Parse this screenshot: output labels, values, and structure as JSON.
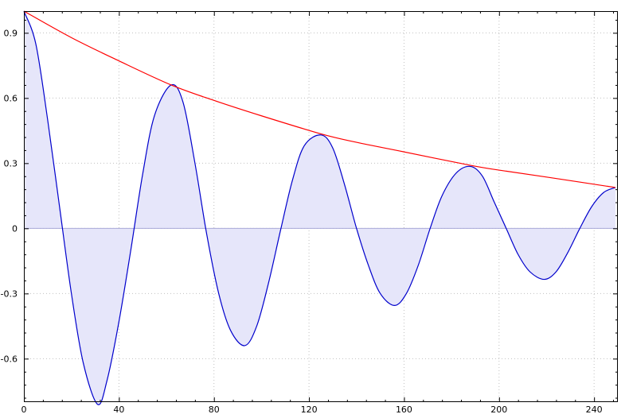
{
  "chart_data": {
    "type": "line",
    "title": "",
    "xlabel": "",
    "ylabel": "",
    "xlim": [
      0,
      250
    ],
    "ylim": [
      -0.8,
      1.0
    ],
    "grid": true,
    "x_ticks": [
      0,
      40,
      80,
      120,
      160,
      200,
      240
    ],
    "x_tick_labels": [
      "0",
      "40",
      "80",
      "120",
      "160",
      "200",
      "240"
    ],
    "y_ticks": [
      0.9,
      0.6,
      0.3,
      0,
      -0.3,
      -0.6
    ],
    "y_tick_labels": [
      "0.9",
      "0.6",
      "0.3",
      "0",
      "-0.3",
      "-0.6"
    ],
    "series": [
      {
        "kind": "filled-line",
        "color": "#0000cc",
        "fill_color": "#e6e6fa",
        "points": [
          [
            0,
            1.0
          ],
          [
            5,
            0.85
          ],
          [
            10,
            0.5
          ],
          [
            15,
            0.1
          ],
          [
            20,
            -0.3
          ],
          [
            25,
            -0.62
          ],
          [
            31,
            -0.81
          ],
          [
            35,
            -0.7
          ],
          [
            40,
            -0.43
          ],
          [
            45,
            -0.1
          ],
          [
            50,
            0.25
          ],
          [
            55,
            0.52
          ],
          [
            62,
            0.66
          ],
          [
            67,
            0.58
          ],
          [
            72,
            0.3
          ],
          [
            77,
            -0.03
          ],
          [
            82,
            -0.3
          ],
          [
            87,
            -0.47
          ],
          [
            93,
            -0.54
          ],
          [
            98,
            -0.45
          ],
          [
            103,
            -0.25
          ],
          [
            108,
            -0.01
          ],
          [
            113,
            0.22
          ],
          [
            118,
            0.38
          ],
          [
            125,
            0.43
          ],
          [
            130,
            0.37
          ],
          [
            135,
            0.2
          ],
          [
            140,
            0.0
          ],
          [
            145,
            -0.17
          ],
          [
            150,
            -0.3
          ],
          [
            156,
            -0.355
          ],
          [
            161,
            -0.3
          ],
          [
            166,
            -0.17
          ],
          [
            171,
            0.0
          ],
          [
            176,
            0.15
          ],
          [
            182,
            0.255
          ],
          [
            188,
            0.285
          ],
          [
            193,
            0.24
          ],
          [
            198,
            0.12
          ],
          [
            203,
            0.0
          ],
          [
            208,
            -0.12
          ],
          [
            213,
            -0.2
          ],
          [
            219,
            -0.235
          ],
          [
            224,
            -0.2
          ],
          [
            229,
            -0.11
          ],
          [
            234,
            0.0
          ],
          [
            239,
            0.1
          ],
          [
            244,
            0.165
          ],
          [
            249,
            0.188
          ]
        ]
      },
      {
        "kind": "envelope",
        "color": "#ff0000",
        "points": [
          [
            0,
            1.0
          ],
          [
            20,
            0.878
          ],
          [
            40,
            0.771
          ],
          [
            62,
            0.66
          ],
          [
            80,
            0.589
          ],
          [
            100,
            0.518
          ],
          [
            125,
            0.435
          ],
          [
            140,
            0.396
          ],
          [
            160,
            0.352
          ],
          [
            188,
            0.29
          ],
          [
            200,
            0.268
          ],
          [
            220,
            0.236
          ],
          [
            249,
            0.188
          ]
        ]
      }
    ]
  }
}
